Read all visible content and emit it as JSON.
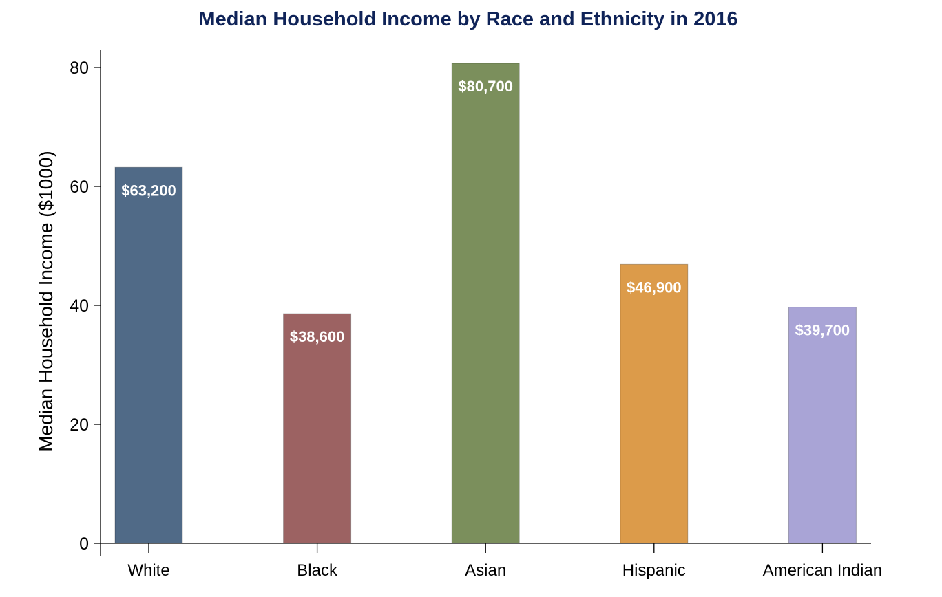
{
  "chart_data": {
    "type": "bar",
    "title": "Median Household Income by Race and Ethnicity in 2016",
    "xlabel": "",
    "ylabel": "Median Household Income ($1000)",
    "ylim": [
      0,
      83
    ],
    "yticks": [
      0,
      20,
      40,
      60,
      80
    ],
    "grid": false,
    "legend": "none",
    "categories": [
      "White",
      "Black",
      "Asian",
      "Hispanic",
      "American Indian"
    ],
    "values": [
      63.2,
      38.6,
      80.7,
      46.9,
      39.7
    ],
    "data_labels": [
      "$63,200",
      "$38,600",
      "$80,700",
      "$46,900",
      "$39,700"
    ],
    "colors": [
      "#506a87",
      "#9c6262",
      "#7b8f5c",
      "#dc9b4a",
      "#a9a4d6"
    ]
  }
}
